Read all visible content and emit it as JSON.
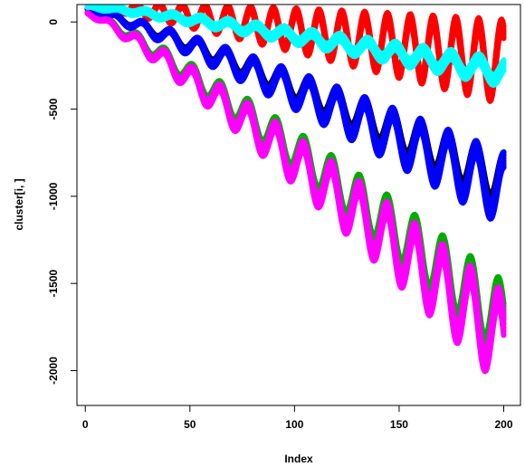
{
  "chart_data": {
    "type": "line",
    "xlabel": "Index",
    "ylabel": "cluster[i, ]",
    "xlim": [
      -4,
      208
    ],
    "ylim": [
      -2200,
      100
    ],
    "xticks": [
      0,
      50,
      100,
      150,
      200
    ],
    "yticks": [
      0,
      -500,
      -1000,
      -1500,
      -2000
    ],
    "xtick_labels": [
      "0",
      "50",
      "100",
      "150",
      "200"
    ],
    "ytick_labels": [
      "0",
      "-500",
      "-1000",
      "-1500",
      "-2000"
    ],
    "grid": false,
    "legend": "none",
    "series_style": "each series is a dense band of many overlapping oscillating lines; bands are given by period, trend and amplitude envelopes",
    "series": [
      {
        "color": "#ff0000",
        "start": 100,
        "end": -230,
        "amp_start": 10,
        "amp_end": 210,
        "period": 10.9,
        "phase": 0,
        "width_start": 6,
        "width_end": 70
      },
      {
        "color": "#00aa00",
        "start": 55,
        "end": -1740,
        "amp_start": 8,
        "amp_end": 210,
        "period": 13.3,
        "phase": 0.4,
        "width_start": 6,
        "width_end": 90
      },
      {
        "color": "#000000",
        "start": 70,
        "end": -930,
        "amp_start": 8,
        "amp_end": 140,
        "period": 13.3,
        "phase": 0.2,
        "width_start": 6,
        "width_end": 80
      },
      {
        "color": "#0000ff",
        "start": 70,
        "end": -960,
        "amp_start": 8,
        "amp_end": 170,
        "period": 13.3,
        "phase": 0.2,
        "width_start": 6,
        "width_end": 90
      },
      {
        "color": "#ff00ff",
        "start": 50,
        "end": -1830,
        "amp_start": 8,
        "amp_end": 230,
        "period": 13.3,
        "phase": 0.4,
        "width_start": 6,
        "width_end": 110
      },
      {
        "color": "#00ffff",
        "start": 90,
        "end": -290,
        "amp_start": 5,
        "amp_end": 55,
        "period": 13.3,
        "phase": 0.1,
        "width_start": 20,
        "width_end": 60
      }
    ]
  }
}
